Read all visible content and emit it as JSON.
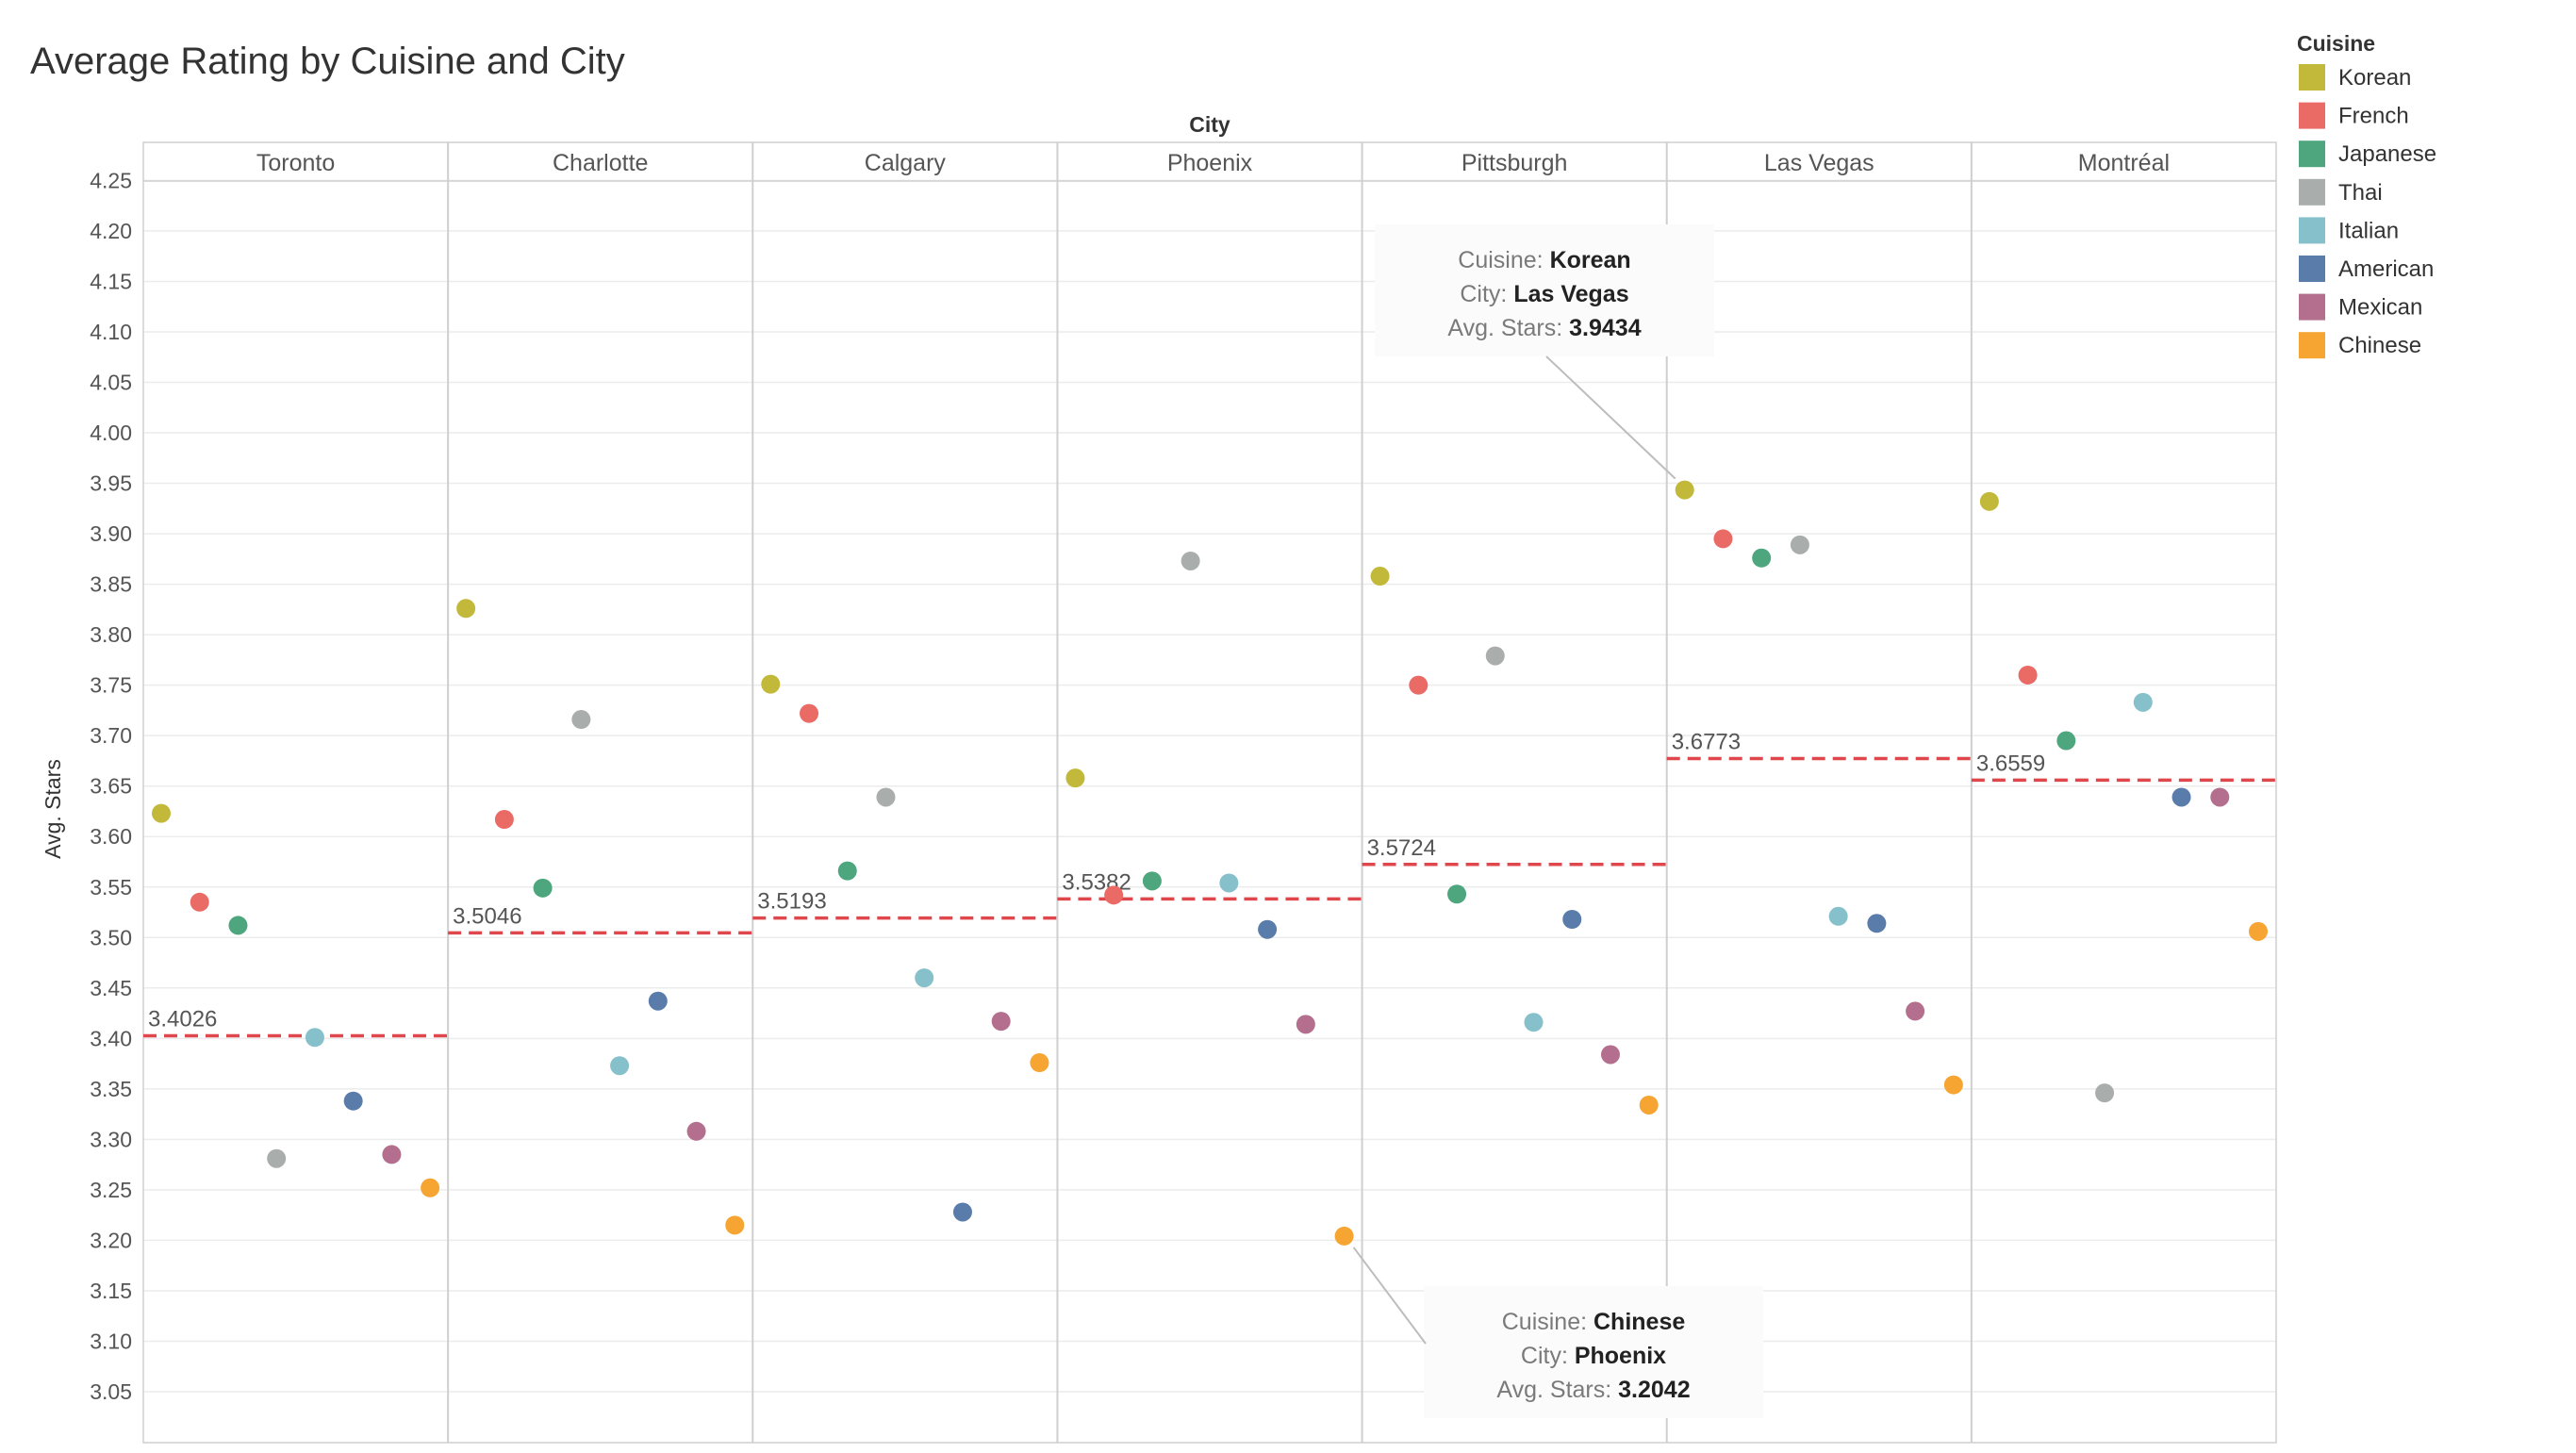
{
  "chart_data": {
    "type": "scatter",
    "title": "Average Rating by Cuisine and City",
    "column_header": "City",
    "ylabel": "Avg. Stars",
    "ylim": [
      3.0,
      4.27
    ],
    "yticks": [
      "3.05",
      "3.10",
      "3.15",
      "3.20",
      "3.25",
      "3.30",
      "3.35",
      "3.40",
      "3.45",
      "3.50",
      "3.55",
      "3.60",
      "3.65",
      "3.70",
      "3.75",
      "3.80",
      "3.85",
      "3.90",
      "3.95",
      "4.00",
      "4.05",
      "4.10",
      "4.15",
      "4.20",
      "4.25"
    ],
    "grid": true,
    "legend_position": "top-right",
    "legend_title": "Cuisine",
    "cuisines": [
      {
        "name": "Korean",
        "color": "#c2b83a"
      },
      {
        "name": "French",
        "color": "#ea6a66"
      },
      {
        "name": "Japanese",
        "color": "#4ea67e"
      },
      {
        "name": "Thai",
        "color": "#a9aeac"
      },
      {
        "name": "Italian",
        "color": "#86c0ca"
      },
      {
        "name": "American",
        "color": "#5a7cab"
      },
      {
        "name": "Mexican",
        "color": "#b46f8e"
      },
      {
        "name": "Chinese",
        "color": "#f6a532"
      }
    ],
    "cities": [
      {
        "name": "Toronto",
        "average": 3.4026,
        "average_label": "3.4026",
        "values": [
          3.623,
          3.535,
          3.512,
          3.281,
          3.401,
          3.338,
          3.285,
          3.252
        ]
      },
      {
        "name": "Charlotte",
        "average": 3.5046,
        "average_label": "3.5046",
        "values": [
          3.826,
          3.617,
          3.549,
          3.716,
          3.373,
          3.437,
          3.308,
          3.215
        ]
      },
      {
        "name": "Calgary",
        "average": 3.5193,
        "average_label": "3.5193",
        "values": [
          3.751,
          3.722,
          3.566,
          3.639,
          3.46,
          3.228,
          3.417,
          3.376
        ]
      },
      {
        "name": "Phoenix",
        "average": 3.5382,
        "average_label": "3.5382",
        "values": [
          3.658,
          3.542,
          3.556,
          3.873,
          3.554,
          3.508,
          3.414,
          3.2042
        ]
      },
      {
        "name": "Pittsburgh",
        "average": 3.5724,
        "average_label": "3.5724",
        "values": [
          3.858,
          3.75,
          3.543,
          3.779,
          3.416,
          3.518,
          3.384,
          3.334
        ]
      },
      {
        "name": "Las Vegas",
        "average": 3.6773,
        "average_label": "3.6773",
        "values": [
          3.9434,
          3.895,
          3.876,
          3.889,
          3.521,
          3.514,
          3.427,
          3.354
        ]
      },
      {
        "name": "Montréal",
        "average": 3.6559,
        "average_label": "3.6559",
        "values": [
          3.932,
          3.76,
          3.695,
          3.346,
          3.733,
          3.639,
          3.639,
          3.506
        ]
      }
    ],
    "reference_line_color": "#e0474c",
    "annotations": [
      {
        "city": "Las Vegas",
        "cuisine": "Korean",
        "cuisine_label": "Cuisine:",
        "cuisine_value": "Korean",
        "city_label": "City:",
        "city_value": "Las Vegas",
        "stars_label": "Avg. Stars:",
        "stars_value": "3.9434"
      },
      {
        "city": "Phoenix",
        "cuisine": "Chinese",
        "cuisine_label": "Cuisine:",
        "cuisine_value": "Chinese",
        "city_label": "City:",
        "city_value": "Phoenix",
        "stars_label": "Avg. Stars:",
        "stars_value": "3.2042"
      }
    ]
  }
}
